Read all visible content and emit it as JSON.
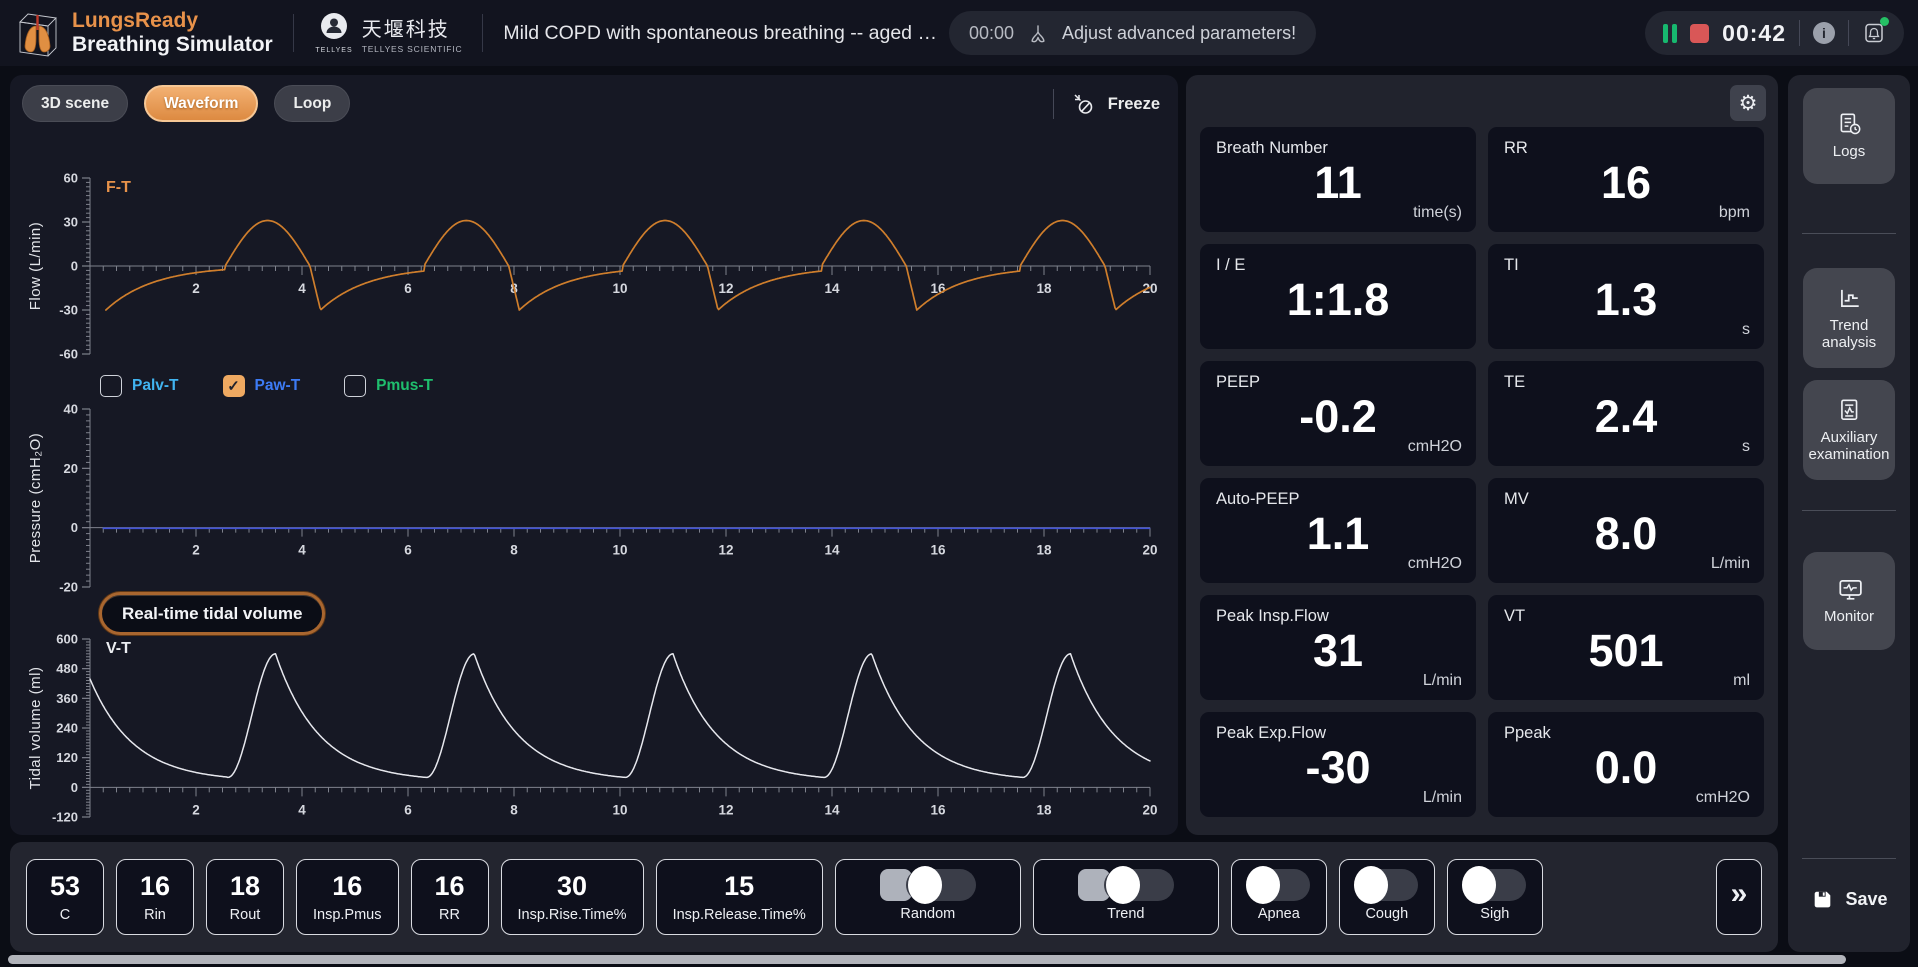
{
  "app": {
    "name": "LungsReady",
    "subtitle": "Breathing Simulator"
  },
  "brand": {
    "cn": "天堰科技",
    "en": "TELLYES SCIENTIFIC",
    "logo_text": "TELLYES"
  },
  "scenario_title": "Mild COPD with spontaneous breathing -- aged …",
  "message_bar": {
    "time": "00:00",
    "text": "Adjust advanced parameters!"
  },
  "timer": {
    "value": "00:42"
  },
  "view_tabs": [
    {
      "label": "3D scene",
      "active": false
    },
    {
      "label": "Waveform",
      "active": true
    },
    {
      "label": "Loop",
      "active": false
    }
  ],
  "freeze_label": "Freeze",
  "pressure_legend": [
    {
      "label": "Palv-T",
      "checked": false,
      "color": "#41b4f0"
    },
    {
      "label": "Paw-T",
      "checked": true,
      "color": "#3d7bf5"
    },
    {
      "label": "Pmus-T",
      "checked": false,
      "color": "#1fbf6e"
    }
  ],
  "realtime_button": "Real-time tidal volume",
  "chart_data": [
    {
      "id": "flow",
      "type": "line",
      "title": "F-T",
      "title_color": "#e8924a",
      "x_range": [
        0,
        20
      ],
      "x_major": 2,
      "x_minor": 0.25,
      "y_label": "Flow (L/min)",
      "y_ticks": [
        60,
        30,
        0,
        -30,
        -60
      ],
      "series_color": "#cf7e2c",
      "model": {
        "kind": "copd_flow",
        "onset0": 2.55,
        "period": 3.75,
        "insp_peak": 31,
        "insp_dur": 1.6,
        "drop_dur": 0.2,
        "exp_peak": -30,
        "exp_tau": 0.9,
        "t_start": 0.3
      },
      "summary": {
        "peak_insp_flow_lmin": 31,
        "peak_exp_flow_lmin": -30,
        "rr_bpm": 16,
        "breaths_visible": 5
      }
    },
    {
      "id": "pressure",
      "type": "line",
      "x_range": [
        0,
        20
      ],
      "x_major": 2,
      "x_minor": 0.25,
      "y_label": "Pressure (cmH₂O)",
      "y_ticks": [
        40,
        20,
        0,
        -20
      ],
      "series_color": "#4152d8",
      "model": {
        "kind": "constant",
        "value": -0.2,
        "t_start": 0.25
      },
      "summary": {
        "paw_cmh2o": -0.2
      }
    },
    {
      "id": "volume",
      "type": "line",
      "title": "V-T",
      "title_color": "#eceef2",
      "x_range": [
        0,
        20
      ],
      "x_major": 2,
      "x_minor": 0.25,
      "y_label": "Tidal volume (ml)",
      "y_ticks": [
        600,
        480,
        360,
        240,
        120,
        0,
        -120
      ],
      "series_color": "#e7e8ee",
      "model": {
        "kind": "tidal_volume",
        "min0": 2.6,
        "period": 3.75,
        "base_ml": 40,
        "peak_ml": 540,
        "rise_dur": 0.9,
        "decay_tau": 0.82,
        "prev_peak_offset": 0.18
      },
      "summary": {
        "tidal_volume_peak_ml": 540,
        "baseline_ml": 40
      }
    }
  ],
  "stats": [
    {
      "label": "Breath Number",
      "value": "11",
      "unit": "time(s)"
    },
    {
      "label": "RR",
      "value": "16",
      "unit": "bpm"
    },
    {
      "label": "I / E",
      "value": "1:1.8",
      "unit": ""
    },
    {
      "label": "TI",
      "value": "1.3",
      "unit": "s"
    },
    {
      "label": "PEEP",
      "value": "-0.2",
      "unit": "cmH2O"
    },
    {
      "label": "TE",
      "value": "2.4",
      "unit": "s"
    },
    {
      "label": "Auto-PEEP",
      "value": "1.1",
      "unit": "cmH2O"
    },
    {
      "label": "MV",
      "value": "8.0",
      "unit": "L/min"
    },
    {
      "label": "Peak Insp.Flow",
      "value": "31",
      "unit": "L/min"
    },
    {
      "label": "VT",
      "value": "501",
      "unit": "ml"
    },
    {
      "label": "Peak Exp.Flow",
      "value": "-30",
      "unit": "L/min"
    },
    {
      "label": "Ppeak",
      "value": "0.0",
      "unit": "cmH2O"
    }
  ],
  "sidebar": {
    "items": [
      {
        "label": "Logs"
      },
      {
        "label": "Trend analysis"
      },
      {
        "label": "Auxiliary examination"
      },
      {
        "label": "Monitor"
      }
    ],
    "save_label": "Save"
  },
  "bottom_bar": {
    "params": [
      {
        "value": "53",
        "label": "C"
      },
      {
        "value": "16",
        "label": "Rin"
      },
      {
        "value": "18",
        "label": "Rout"
      },
      {
        "value": "16",
        "label": "Insp.Pmus"
      },
      {
        "value": "16",
        "label": "RR"
      },
      {
        "value": "30",
        "label": "Insp.Rise.Time%"
      },
      {
        "value": "15",
        "label": "Insp.Release.Time%"
      }
    ],
    "toggles": [
      {
        "label": "Random",
        "wide": true
      },
      {
        "label": "Trend",
        "wide": true
      },
      {
        "label": "Apnea",
        "wide": false
      },
      {
        "label": "Cough",
        "wide": false
      },
      {
        "label": "Sigh",
        "wide": false
      }
    ],
    "more_label": "»"
  },
  "colors": {
    "accent_orange": "#e8924a",
    "flow_line": "#cf7e2c",
    "pressure_line": "#4152d8",
    "volume_line": "#e7e8ee",
    "pause_green": "#17b86f",
    "stop_red": "#d95757",
    "status_dot_green": "#25c065"
  }
}
